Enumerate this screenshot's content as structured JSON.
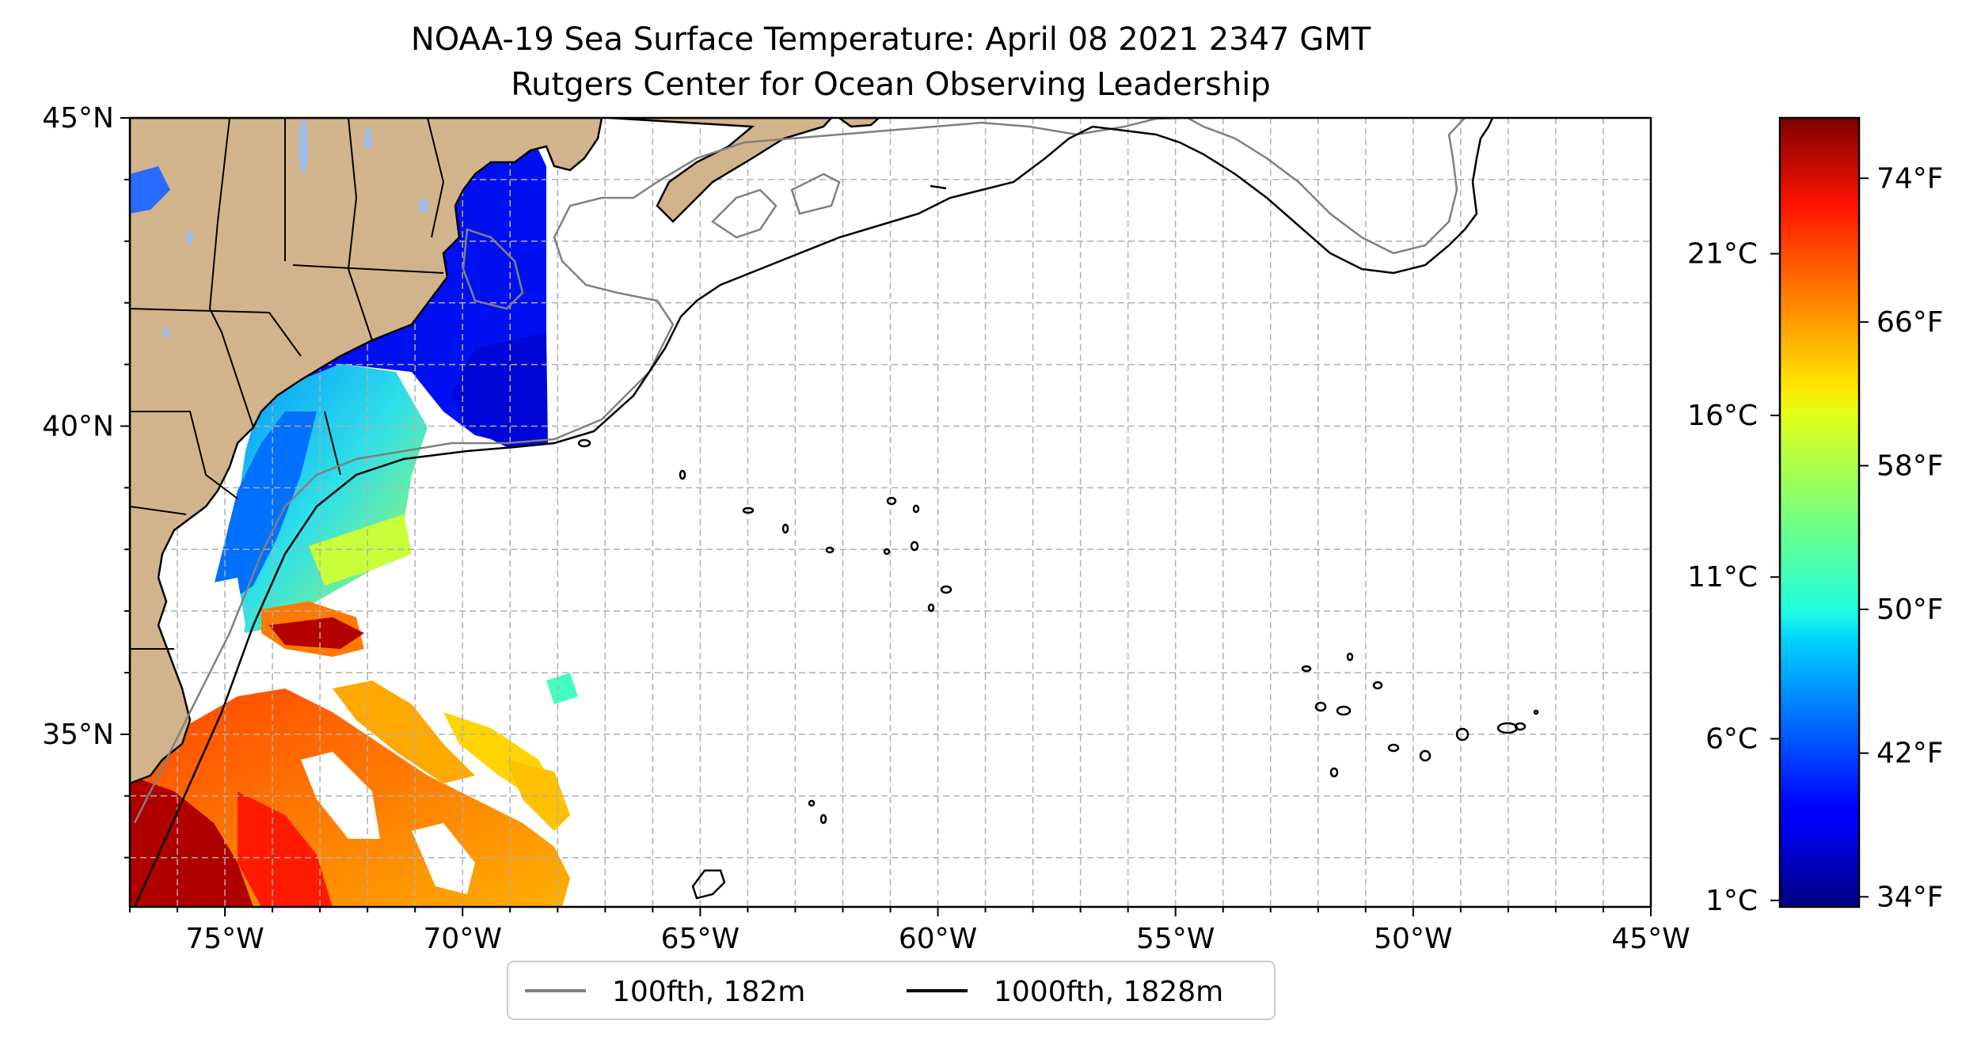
{
  "title": {
    "line1": "NOAA-19 Sea Surface Temperature: April 08 2021 2347 GMT",
    "line2": "Rutgers Center for Ocean Observing Leadership"
  },
  "map": {
    "lon_range": [
      -77,
      -45
    ],
    "lat_range": [
      32.2,
      45
    ],
    "x_ticks": [
      {
        "value": -75,
        "label": "75°W"
      },
      {
        "value": -70,
        "label": "70°W"
      },
      {
        "value": -65,
        "label": "65°W"
      },
      {
        "value": -60,
        "label": "60°W"
      },
      {
        "value": -55,
        "label": "55°W"
      },
      {
        "value": -50,
        "label": "50°W"
      },
      {
        "value": -45,
        "label": "45°W"
      }
    ],
    "y_ticks": [
      {
        "value": 45,
        "label": "45°N"
      },
      {
        "value": 40,
        "label": "40°N"
      },
      {
        "value": 35,
        "label": "35°N"
      }
    ],
    "grid": true,
    "grid_spacing_deg": 1,
    "colors": {
      "land": "#D2B48C",
      "lakes": "#9FBEE6",
      "isobath_100": "#808080",
      "isobath_1000": "#000000",
      "grid": "#B0B0B0"
    }
  },
  "colorbar": {
    "colormap": "jet",
    "range_c": [
      0.8,
      25.2
    ],
    "celsius_ticks": [
      {
        "value": 1,
        "label": "1°C"
      },
      {
        "value": 6,
        "label": "6°C"
      },
      {
        "value": 11,
        "label": "11°C"
      },
      {
        "value": 16,
        "label": "16°C"
      },
      {
        "value": 21,
        "label": "21°C"
      }
    ],
    "fahrenheit_ticks": [
      {
        "value": 34,
        "label": "34°F"
      },
      {
        "value": 42,
        "label": "42°F"
      },
      {
        "value": 50,
        "label": "50°F"
      },
      {
        "value": 58,
        "label": "58°F"
      },
      {
        "value": 66,
        "label": "66°F"
      },
      {
        "value": 74,
        "label": "74°F"
      }
    ]
  },
  "legend": {
    "location": "bottom-center",
    "items": [
      {
        "label": "100fth, 182m",
        "color": "#808080"
      },
      {
        "label": "1000fth, 1828m",
        "color": "#000000"
      }
    ]
  }
}
